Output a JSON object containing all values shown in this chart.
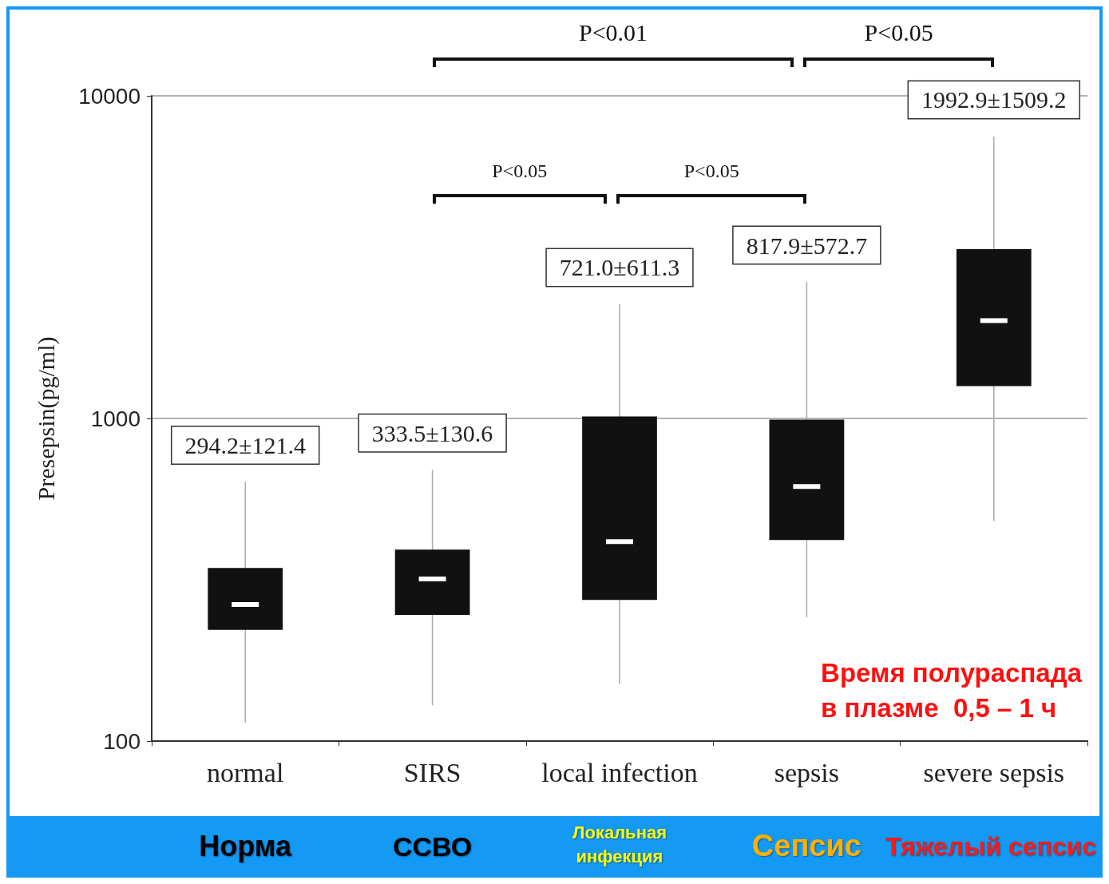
{
  "chart_data": {
    "type": "box",
    "ylabel": "Presepsin(pg/ml)",
    "categories": [
      "normal",
      "SIRS",
      "local infection",
      "sepsis",
      "severe sepsis"
    ],
    "series": [
      {
        "color": "#111111",
        "boxes": [
          {
            "low": 114,
            "q1": 221,
            "median": 265,
            "q3": 344,
            "high": 636
          },
          {
            "low": 129,
            "q1": 246,
            "median": 318,
            "q3": 392,
            "high": 693
          },
          {
            "low": 150,
            "q1": 274,
            "median": 415,
            "q3": 1014,
            "high": 2260
          },
          {
            "low": 242,
            "q1": 420,
            "median": 615,
            "q3": 991,
            "high": 2650
          },
          {
            "low": 481,
            "q1": 1259,
            "median": 2010,
            "q3": 3350,
            "high": 7480
          }
        ]
      }
    ],
    "log": "y",
    "ylim": [
      100,
      10000
    ],
    "yticks": [
      100,
      1000,
      10000
    ],
    "grid": "y",
    "annotations": [
      "294.2±121.4",
      "333.5±130.6",
      "721.0±611.3",
      "817.9±572.7",
      "1992.9±1509.2",
      "P<0.01",
      "P<0.05",
      "P<0.05",
      "P<0.05",
      "Время полураспада\nв плазме  0,5 – 1 ч",
      "Норма",
      "ССВО",
      "Локальная\nинфекция",
      "Сепсис",
      "Тяжелый сепсис"
    ]
  }
}
